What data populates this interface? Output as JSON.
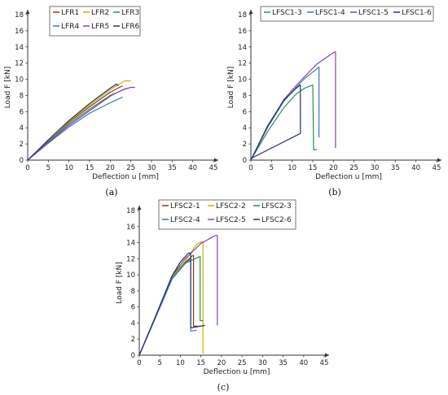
{
  "colors": {
    "brown": "#8B3A1A",
    "olive": "#C8B400",
    "teal": "#2E8B57",
    "blue": "#3E78B8",
    "purple": "#8A3FB8",
    "navy": "#27336B"
  },
  "chart_data": [
    {
      "type": "line",
      "panel_label": "(a)",
      "xlabel": "Deflection u [mm]",
      "ylabel": "Load F [kN]",
      "xlim": [
        0,
        45
      ],
      "ylim": [
        0,
        18
      ],
      "xticks": [
        "0",
        "5",
        "10",
        "15",
        "20",
        "25",
        "30",
        "35",
        "40",
        "45"
      ],
      "yticks": [
        "0",
        "2",
        "4",
        "6",
        "8",
        "10",
        "12",
        "14",
        "16",
        "18"
      ],
      "legend_position": "top-left",
      "grid": false,
      "series": [
        {
          "name": "LFR1",
          "color": "#8B3A1A",
          "points": [
            [
              0,
              0
            ],
            [
              5,
              2.4
            ],
            [
              10,
              4.7
            ],
            [
              15,
              6.6
            ],
            [
              20,
              8.4
            ],
            [
              23,
              9.2
            ]
          ]
        },
        {
          "name": "LFR2",
          "color": "#C8B400",
          "points": [
            [
              0,
              0
            ],
            [
              5,
              2.4
            ],
            [
              10,
              4.8
            ],
            [
              15,
              6.8
            ],
            [
              20,
              8.7
            ],
            [
              23.5,
              9.8
            ],
            [
              25,
              9.8
            ]
          ]
        },
        {
          "name": "LFR3",
          "color": "#2E8B57",
          "points": [
            [
              0,
              0
            ],
            [
              5,
              2.3
            ],
            [
              10,
              4.5
            ],
            [
              15,
              6.3
            ],
            [
              20,
              8.0
            ],
            [
              24,
              8.9
            ]
          ]
        },
        {
          "name": "LFR4",
          "color": "#3E78B8",
          "points": [
            [
              0,
              0
            ],
            [
              5,
              2.1
            ],
            [
              10,
              4.1
            ],
            [
              15,
              5.8
            ],
            [
              20,
              7.1
            ],
            [
              23,
              7.8
            ]
          ]
        },
        {
          "name": "LFR5",
          "color": "#8A3FB8",
          "points": [
            [
              0,
              0
            ],
            [
              5,
              2.2
            ],
            [
              10,
              4.3
            ],
            [
              15,
              6.1
            ],
            [
              20,
              7.9
            ],
            [
              23,
              8.7
            ],
            [
              25,
              9.0
            ],
            [
              26,
              9.0
            ]
          ]
        },
        {
          "name": "LFR6",
          "color": "#27336B",
          "points": [
            [
              0,
              0
            ],
            [
              5,
              2.5
            ],
            [
              10,
              4.9
            ],
            [
              15,
              7.0
            ],
            [
              20,
              8.9
            ],
            [
              21.5,
              9.4
            ],
            [
              22,
              9.2
            ]
          ]
        }
      ]
    },
    {
      "type": "line",
      "panel_label": "(b)",
      "xlabel": "Deflection u [mm]",
      "ylabel": "Load F [kN]",
      "xlim": [
        0,
        45
      ],
      "ylim": [
        0,
        18
      ],
      "xticks": [
        "0",
        "5",
        "10",
        "15",
        "20",
        "25",
        "30",
        "35",
        "40",
        "45"
      ],
      "yticks": [
        "0",
        "2",
        "4",
        "6",
        "8",
        "10",
        "12",
        "14",
        "16",
        "18"
      ],
      "legend_position": "top",
      "grid": false,
      "series": [
        {
          "name": "LFSC1-3",
          "color": "#2E8B57",
          "points": [
            [
              0,
              0
            ],
            [
              4,
              3.5
            ],
            [
              8,
              6.5
            ],
            [
              11,
              8.2
            ],
            [
              13,
              8.9
            ],
            [
              15,
              9.3
            ],
            [
              15.2,
              1.3
            ],
            [
              16,
              1.3
            ]
          ]
        },
        {
          "name": "LFSC1-4",
          "color": "#3E78B8",
          "points": [
            [
              0,
              0
            ],
            [
              4,
              4.0
            ],
            [
              8,
              7.3
            ],
            [
              11,
              9.0
            ],
            [
              13,
              10.1
            ],
            [
              16,
              11.3
            ],
            [
              16.5,
              11.5
            ],
            [
              16.5,
              2.8
            ]
          ]
        },
        {
          "name": "LFSC1-5",
          "color": "#8A3FB8",
          "points": [
            [
              0,
              0
            ],
            [
              4,
              4.1
            ],
            [
              8,
              7.5
            ],
            [
              12,
              9.8
            ],
            [
              16,
              11.9
            ],
            [
              20,
              13.3
            ],
            [
              20.5,
              13.4
            ],
            [
              20.5,
              1.5
            ]
          ]
        },
        {
          "name": "LFSC1-6",
          "color": "#27336B",
          "points": [
            [
              0,
              0
            ],
            [
              4,
              4.2
            ],
            [
              8,
              7.4
            ],
            [
              11,
              8.9
            ],
            [
              12,
              9.3
            ],
            [
              12,
              3.3
            ],
            [
              0,
              0.2
            ]
          ]
        }
      ]
    },
    {
      "type": "line",
      "panel_label": "(c)",
      "xlabel": "Deflection u [mm]",
      "ylabel": "Load F [kN]",
      "xlim": [
        0,
        45
      ],
      "ylim": [
        0,
        18
      ],
      "xticks": [
        "0",
        "5",
        "10",
        "15",
        "20",
        "25",
        "30",
        "35",
        "40",
        "45"
      ],
      "yticks": [
        "0",
        "2",
        "4",
        "6",
        "8",
        "10",
        "12",
        "14",
        "16",
        "18"
      ],
      "legend_position": "top",
      "grid": false,
      "series": [
        {
          "name": "LFSC2-1",
          "color": "#8B3A1A",
          "points": [
            [
              0,
              0
            ],
            [
              4,
              4.8
            ],
            [
              8,
              9.8
            ],
            [
              10,
              11.0
            ],
            [
              13,
              12.4
            ],
            [
              13.2,
              12.4
            ],
            [
              13.2,
              3.6
            ],
            [
              15,
              3.6
            ]
          ]
        },
        {
          "name": "LFSC2-2",
          "color": "#C8B400",
          "points": [
            [
              0,
              0
            ],
            [
              4,
              4.8
            ],
            [
              8,
              9.7
            ],
            [
              11,
              11.6
            ],
            [
              14,
              13.8
            ],
            [
              15,
              14.1
            ],
            [
              15.5,
              14.1
            ],
            [
              15.5,
              0.2
            ]
          ]
        },
        {
          "name": "LFSC2-3",
          "color": "#2E8B57",
          "points": [
            [
              0,
              0
            ],
            [
              4,
              4.8
            ],
            [
              8,
              9.6
            ],
            [
              11,
              11.4
            ],
            [
              14.8,
              12.3
            ],
            [
              14.8,
              4.3
            ],
            [
              15.5,
              4.3
            ]
          ]
        },
        {
          "name": "LFSC2-4",
          "color": "#3E78B8",
          "points": [
            [
              0,
              0
            ],
            [
              4,
              4.7
            ],
            [
              8,
              9.5
            ],
            [
              11,
              11.3
            ],
            [
              12.5,
              12.0
            ],
            [
              12.5,
              3.0
            ],
            [
              14,
              3.1
            ]
          ]
        },
        {
          "name": "LFSC2-5",
          "color": "#8A3FB8",
          "points": [
            [
              0,
              0
            ],
            [
              4,
              4.9
            ],
            [
              8,
              9.9
            ],
            [
              11,
              11.9
            ],
            [
              15,
              13.9
            ],
            [
              18.5,
              14.9
            ],
            [
              19,
              14.9
            ],
            [
              19,
              3.7
            ]
          ]
        },
        {
          "name": "LFSC2-6",
          "color": "#27336B",
          "points": [
            [
              0,
              0
            ],
            [
              4,
              4.9
            ],
            [
              8,
              9.9
            ],
            [
              10,
              11.6
            ],
            [
              12,
              12.7
            ],
            [
              12.5,
              12.7
            ],
            [
              12.5,
              3.4
            ],
            [
              16,
              3.7
            ]
          ]
        }
      ]
    }
  ]
}
